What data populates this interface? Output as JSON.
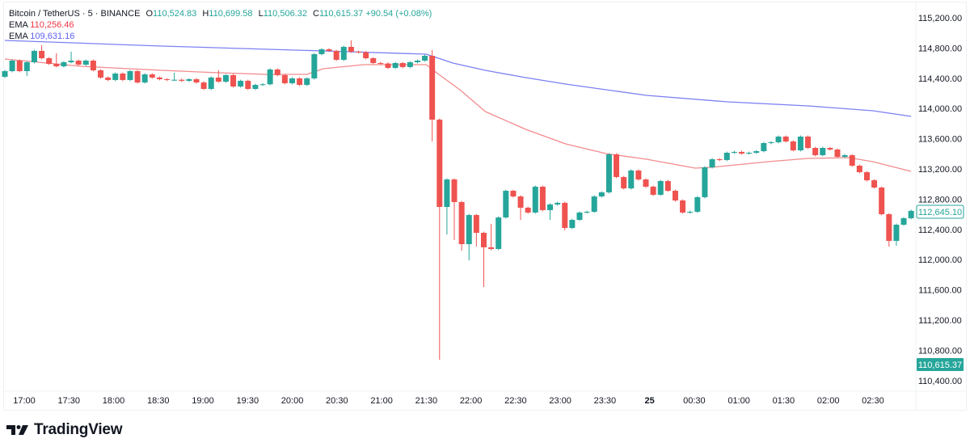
{
  "header": {
    "symbol": "Bitcoin / TetherUS · 5 · BINANCE",
    "open_label": "O",
    "open": "110,524.83",
    "high_label": "H",
    "high": "110,699.58",
    "low_label": "L",
    "low": "110,506.32",
    "close_label": "C",
    "close": "110,615.37",
    "change": "+90.54 (+0.08%)",
    "ema1_label": "EMA",
    "ema1_value": "110,256.46",
    "ema2_label": "EMA",
    "ema2_value": "109,631.16"
  },
  "colors": {
    "up": "#26a69a",
    "down": "#ef5350",
    "ema1": "#f28b8e",
    "ema2": "#7c80f2"
  },
  "price_tags": {
    "last_visible": "112,645.10",
    "current": "110,615.37"
  },
  "brand": "TradingView",
  "chart_data": {
    "type": "candlestick",
    "interval_minutes": 5,
    "y_ticks": [
      "115,200.00",
      "114,800.00",
      "114,400.00",
      "114,000.00",
      "113,600.00",
      "113,200.00",
      "112,800.00",
      "112,400.00",
      "112,000.00",
      "111,600.00",
      "111,200.00",
      "110,800.00",
      "110,400.00"
    ],
    "ylim": [
      110300,
      115300
    ],
    "x_ticks": [
      {
        "label": "17:00"
      },
      {
        "label": "17:30"
      },
      {
        "label": "18:00"
      },
      {
        "label": "18:30"
      },
      {
        "label": "19:00"
      },
      {
        "label": "19:30"
      },
      {
        "label": "20:00"
      },
      {
        "label": "20:30"
      },
      {
        "label": "21:00"
      },
      {
        "label": "21:30"
      },
      {
        "label": "22:00"
      },
      {
        "label": "22:30"
      },
      {
        "label": "23:00"
      },
      {
        "label": "23:30"
      },
      {
        "label": "25",
        "bold": true
      },
      {
        "label": "00:30"
      },
      {
        "label": "01:00"
      },
      {
        "label": "01:30"
      },
      {
        "label": "02:00"
      },
      {
        "label": "02:30"
      }
    ],
    "first_open": 114419,
    "close": [
      114494,
      114633,
      114494,
      114612,
      114762,
      114665,
      114590,
      114558,
      114612,
      114633,
      114580,
      114633,
      114505,
      114409,
      114377,
      114462,
      114377,
      114494,
      114344,
      114451,
      114409,
      114387,
      114377,
      114380,
      114366,
      114387,
      114344,
      114259,
      114409,
      114355,
      114441,
      114291,
      114366,
      114259,
      114312,
      114320,
      114516,
      114441,
      114334,
      114398,
      114312,
      114398,
      114719,
      114783,
      114762,
      114644,
      114815,
      114751,
      114745,
      114665,
      114601,
      114595,
      114537,
      114601,
      114548,
      114612,
      114633,
      114697,
      113852,
      112697,
      113061,
      112762,
      112205,
      112590,
      112355,
      112163,
      112141,
      112558,
      112911,
      112836,
      112687,
      112623,
      112965,
      112655,
      112730,
      112751,
      112419,
      112526,
      112623,
      112633,
      112836,
      112890,
      113393,
      113093,
      112943,
      113179,
      113061,
      112965,
      112858,
      113040,
      112911,
      112783,
      112623,
      112633,
      112826,
      113221,
      113328,
      113318,
      113414,
      113425,
      113403,
      113414,
      113435,
      113542,
      113553,
      113628,
      113564,
      113446,
      113628,
      113478,
      113382,
      113478,
      113457,
      113360,
      113382,
      113243,
      113157,
      113050,
      112954,
      112601,
      112248,
      112462,
      112548,
      112645.1
    ],
    "wick_highs": {
      "5": 114836,
      "7": 114730,
      "9": 114751,
      "23": 114473,
      "29": 114505,
      "47": 114901,
      "58": 114772,
      "66": 112473
    },
    "wick_lows": {
      "3": 114430,
      "58": 113564,
      "59": 110676,
      "60": 112334,
      "61": 112259,
      "62": 112120,
      "63": 111991,
      "64": 112173,
      "65": 111638,
      "70": 112526,
      "74": 112526,
      "76": 112387,
      "120": 112173,
      "121": 112184
    },
    "series": [
      {
        "name": "EMA",
        "color_key": "ema1",
        "points": [
          [
            0,
            114655
          ],
          [
            10.3,
            114558
          ],
          [
            21.3,
            114505
          ],
          [
            29,
            114473
          ],
          [
            35.5,
            114451
          ],
          [
            41,
            114451
          ],
          [
            43.2,
            114526
          ],
          [
            48.7,
            114580
          ],
          [
            57.2,
            114580
          ],
          [
            58.6,
            114473
          ],
          [
            61.9,
            114237
          ],
          [
            65.2,
            113959
          ],
          [
            70.7,
            113724
          ],
          [
            76.1,
            113532
          ],
          [
            81.6,
            113403
          ],
          [
            87.1,
            113328
          ],
          [
            93.7,
            113211
          ],
          [
            95.9,
            113221
          ],
          [
            103.6,
            113296
          ],
          [
            109,
            113339
          ],
          [
            114.5,
            113350
          ],
          [
            117.8,
            113296
          ],
          [
            123,
            113168
          ]
        ]
      },
      {
        "name": "EMA",
        "color_key": "ema2",
        "points": [
          [
            0,
            114901
          ],
          [
            21.3,
            114826
          ],
          [
            43.2,
            114762
          ],
          [
            57.2,
            114719
          ],
          [
            60.8,
            114601
          ],
          [
            65.2,
            114505
          ],
          [
            70.7,
            114409
          ],
          [
            76.1,
            114323
          ],
          [
            87.1,
            114173
          ],
          [
            98.1,
            114088
          ],
          [
            109,
            114034
          ],
          [
            117.8,
            113970
          ],
          [
            123,
            113895
          ]
        ]
      }
    ]
  }
}
